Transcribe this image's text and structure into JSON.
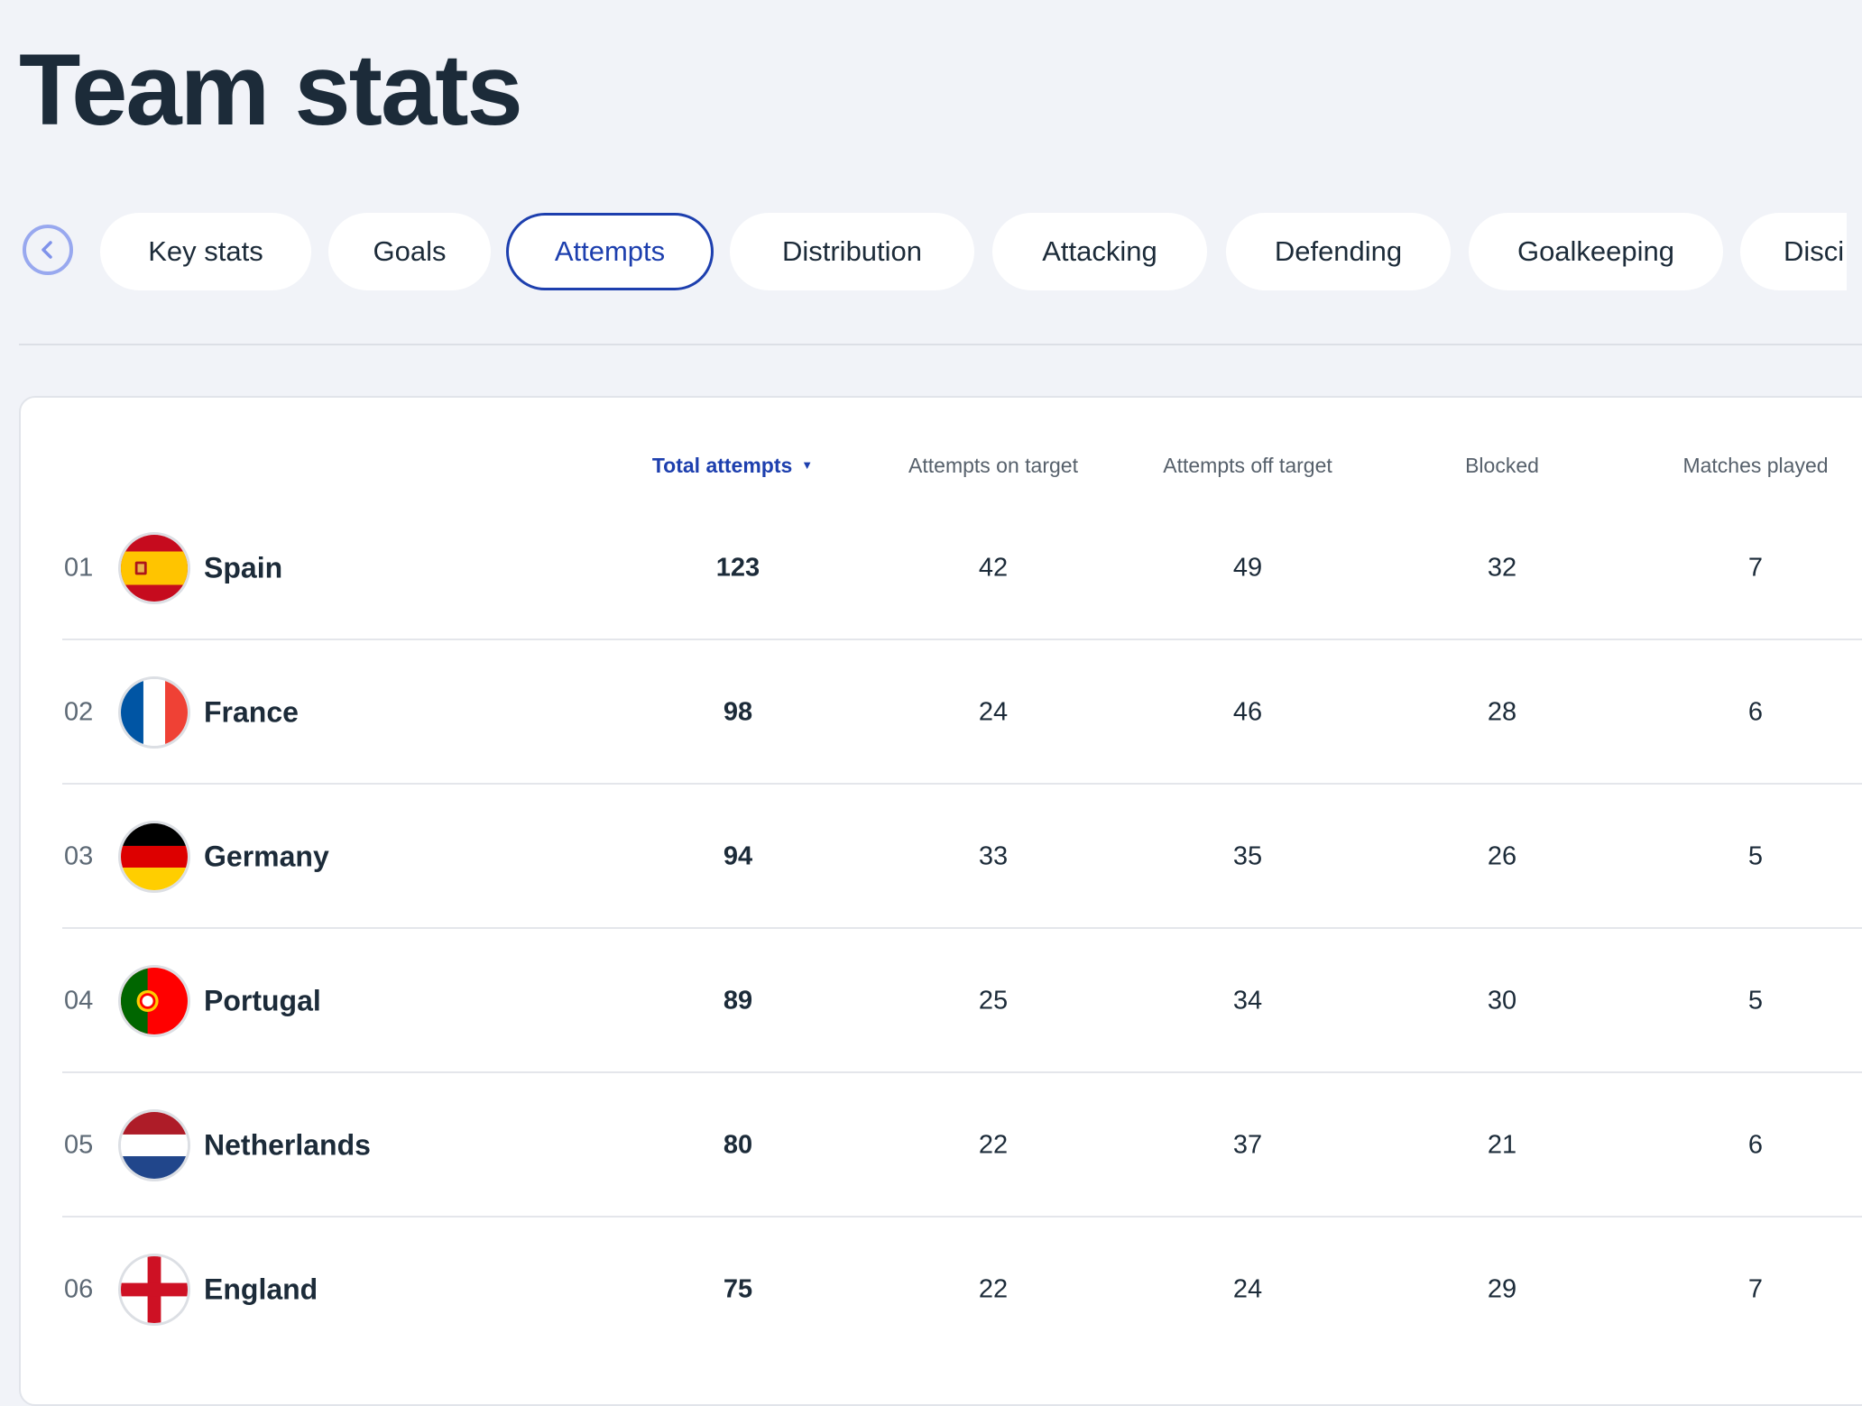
{
  "page": {
    "title": "Team stats"
  },
  "tabs": [
    {
      "label": "Key stats",
      "active": false
    },
    {
      "label": "Goals",
      "active": false
    },
    {
      "label": "Attempts",
      "active": true
    },
    {
      "label": "Distribution",
      "active": false
    },
    {
      "label": "Attacking",
      "active": false
    },
    {
      "label": "Defending",
      "active": false
    },
    {
      "label": "Goalkeeping",
      "active": false
    },
    {
      "label": "Disci",
      "active": false
    }
  ],
  "navigation": {
    "back_icon": "chevron-left-icon"
  },
  "table": {
    "sort": {
      "column": "Total attempts",
      "direction": "descending",
      "icon": "caret-down-icon"
    },
    "columns": [
      "Total attempts",
      "Attempts on target",
      "Attempts off target",
      "Blocked",
      "Matches played"
    ],
    "rows": [
      {
        "rank": "01",
        "team": "Spain",
        "flag": "spain-flag-icon",
        "total_attempts": "123",
        "on_target": "42",
        "off_target": "49",
        "blocked": "32",
        "matches_played": "7"
      },
      {
        "rank": "02",
        "team": "France",
        "flag": "france-flag-icon",
        "total_attempts": "98",
        "on_target": "24",
        "off_target": "46",
        "blocked": "28",
        "matches_played": "6"
      },
      {
        "rank": "03",
        "team": "Germany",
        "flag": "germany-flag-icon",
        "total_attempts": "94",
        "on_target": "33",
        "off_target": "35",
        "blocked": "26",
        "matches_played": "5"
      },
      {
        "rank": "04",
        "team": "Portugal",
        "flag": "portugal-flag-icon",
        "total_attempts": "89",
        "on_target": "25",
        "off_target": "34",
        "blocked": "30",
        "matches_played": "5"
      },
      {
        "rank": "05",
        "team": "Netherlands",
        "flag": "netherlands-flag-icon",
        "total_attempts": "80",
        "on_target": "22",
        "off_target": "37",
        "blocked": "21",
        "matches_played": "6"
      },
      {
        "rank": "06",
        "team": "England",
        "flag": "england-flag-icon",
        "total_attempts": "75",
        "on_target": "22",
        "off_target": "24",
        "blocked": "29",
        "matches_played": "7"
      }
    ]
  },
  "colors": {
    "background": "#f1f3f8",
    "accent": "#1d3fae",
    "text": "#1c2b39",
    "muted": "#56606b",
    "back_button_ring": "#98a8ef"
  }
}
